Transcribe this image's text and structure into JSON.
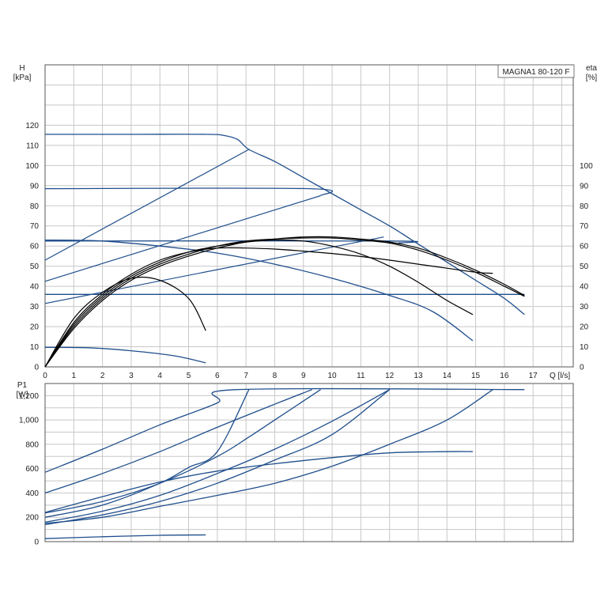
{
  "colors": {
    "blue": "#1f4e8c",
    "black": "#000000",
    "grid": "#c8c8c8",
    "axis": "#555555"
  },
  "chart_data": [
    {
      "type": "line",
      "title": "MAGNA1 80-120 F",
      "ylabel": "H",
      "yunit": "[kPa]",
      "y2label": "eta",
      "y2unit": "[%]",
      "xlabel": "Q [l/s]",
      "xlim": [
        0,
        18.4
      ],
      "ylim": [
        0,
        150
      ],
      "y2lim": [
        0,
        150
      ],
      "xticks": [
        "0",
        "1",
        "2",
        "3",
        "4",
        "5",
        "6",
        "7",
        "8",
        "9",
        "10",
        "11",
        "12",
        "13",
        "14",
        "15",
        "16",
        "17"
      ],
      "yticks": [
        "0",
        "10",
        "20",
        "30",
        "40",
        "50",
        "60",
        "70",
        "80",
        "90",
        "100",
        "110",
        "120"
      ],
      "y2ticks": [
        "0",
        "10",
        "20",
        "30",
        "40",
        "50",
        "60",
        "70",
        "80",
        "90",
        "100"
      ],
      "grid": true,
      "head_series": [
        {
          "values": [
            [
              0,
              115.5
            ],
            [
              3,
              115.5
            ],
            [
              5.6,
              115.5
            ],
            [
              6.2,
              115
            ],
            [
              6.7,
              113
            ],
            [
              7.1,
              108
            ],
            [
              8,
              102
            ],
            [
              9,
              94
            ],
            [
              10,
              86
            ],
            [
              11,
              78
            ],
            [
              12,
              70
            ],
            [
              13,
              61
            ],
            [
              14,
              52
            ],
            [
              15,
              43
            ],
            [
              16,
              34
            ],
            [
              16.7,
              26
            ]
          ]
        },
        {
          "values": [
            [
              0,
              88.5
            ],
            [
              9.2,
              88.5
            ],
            [
              9.6,
              85
            ]
          ]
        },
        {
          "values": [
            [
              0,
              62.5
            ],
            [
              12,
              62.5
            ],
            [
              12.3,
              61.5
            ]
          ]
        },
        {
          "values": [
            [
              0,
              36
            ],
            [
              16.7,
              36
            ]
          ]
        },
        {
          "values": [
            [
              0,
              63
            ],
            [
              2,
              62.5
            ],
            [
              4,
              60
            ],
            [
              6,
              56.5
            ],
            [
              8,
              51
            ],
            [
              10,
              44
            ],
            [
              12,
              35.5
            ],
            [
              13.5,
              27.5
            ],
            [
              14.9,
              13
            ]
          ]
        },
        {
          "values": [
            [
              0,
              9.7
            ],
            [
              1.5,
              9.5
            ],
            [
              3,
              8
            ],
            [
              4.5,
              5.5
            ],
            [
              5.6,
              2
            ]
          ]
        }
      ],
      "system_curves": [
        {
          "values": [
            [
              0,
              53
            ],
            [
              7.1,
              108
            ]
          ]
        },
        {
          "values": [
            [
              0,
              42.5
            ],
            [
              9.6,
              85
            ]
          ]
        },
        {
          "values": [
            [
              0,
              31.5
            ],
            [
              11.8,
              64.5
            ]
          ]
        }
      ],
      "efficiency_series": [
        {
          "values": [
            [
              0,
              0
            ],
            [
              1,
              24
            ],
            [
              2,
              37
            ],
            [
              3,
              44
            ],
            [
              4,
              43
            ],
            [
              5,
              34
            ],
            [
              5.6,
              18
            ]
          ]
        },
        {
          "values": [
            [
              0,
              0
            ],
            [
              1,
              22
            ],
            [
              2,
              36
            ],
            [
              3,
              46
            ],
            [
              4,
              53
            ],
            [
              5,
              57
            ],
            [
              6,
              59
            ],
            [
              7,
              59
            ],
            [
              8,
              58.5
            ],
            [
              9,
              57.5
            ],
            [
              10,
              56.3
            ],
            [
              11,
              54.8
            ],
            [
              12,
              53
            ],
            [
              13,
              51
            ],
            [
              14,
              49
            ],
            [
              15,
              47
            ],
            [
              15.6,
              46.5
            ]
          ]
        },
        {
          "values": [
            [
              0,
              0
            ],
            [
              1,
              21
            ],
            [
              2,
              35
            ],
            [
              3,
              45
            ],
            [
              4,
              52
            ],
            [
              5,
              57
            ],
            [
              6,
              60
            ],
            [
              7,
              62
            ],
            [
              8,
              63
            ],
            [
              9,
              62.5
            ],
            [
              10,
              60
            ],
            [
              11,
              56
            ],
            [
              12,
              50
            ],
            [
              13,
              42
            ],
            [
              14,
              33
            ],
            [
              14.9,
              26
            ]
          ]
        },
        {
          "values": [
            [
              0,
              0
            ],
            [
              1,
              20
            ],
            [
              2,
              34
            ],
            [
              3,
              44
            ],
            [
              4,
              51
            ],
            [
              5,
              56
            ],
            [
              6,
              60
            ],
            [
              7,
              62.5
            ],
            [
              8,
              63.5
            ],
            [
              9,
              64
            ],
            [
              10,
              64
            ],
            [
              11,
              63
            ],
            [
              12,
              61.5
            ],
            [
              13,
              58
            ],
            [
              14,
              53
            ],
            [
              15,
              47
            ],
            [
              16,
              40
            ],
            [
              16.7,
              35
            ]
          ]
        },
        {
          "values": [
            [
              0,
              0
            ],
            [
              1,
              19
            ],
            [
              2,
              33
            ],
            [
              3,
              43
            ],
            [
              4,
              50
            ],
            [
              5,
              55
            ],
            [
              6,
              59
            ],
            [
              7,
              62
            ],
            [
              8,
              63.5
            ],
            [
              9,
              64.5
            ],
            [
              10,
              64.5
            ],
            [
              11,
              63.5
            ],
            [
              12,
              62
            ],
            [
              13,
              59
            ],
            [
              14,
              54
            ],
            [
              15,
              48
            ],
            [
              16,
              41
            ],
            [
              16.7,
              35.5
            ]
          ]
        }
      ]
    },
    {
      "type": "line",
      "ylabel": "P1",
      "yunit": "[W]",
      "xlim": [
        0,
        18.4
      ],
      "ylim": [
        0,
        1300
      ],
      "yticks": [
        "0",
        "200",
        "400",
        "600",
        "800",
        "1,000",
        "1,200"
      ],
      "grid": true,
      "series": [
        {
          "values": [
            [
              0,
              570
            ],
            [
              2,
              760
            ],
            [
              4,
              960
            ],
            [
              6,
              1140
            ],
            [
              6.7,
              1250
            ],
            [
              16.7,
              1250
            ]
          ]
        },
        {
          "values": [
            [
              0,
              400
            ],
            [
              2,
              560
            ],
            [
              4,
              740
            ],
            [
              6,
              940
            ],
            [
              8,
              1130
            ],
            [
              9.3,
              1250
            ]
          ]
        },
        {
          "values": [
            [
              0,
              235
            ],
            [
              2,
              330
            ],
            [
              4,
              480
            ],
            [
              6,
              700
            ],
            [
              7.1,
              860
            ],
            [
              8,
              1000
            ],
            [
              9.6,
              1250
            ]
          ]
        },
        {
          "values": [
            [
              0,
              200
            ],
            [
              2,
              300
            ],
            [
              4,
              480
            ],
            [
              5,
              610
            ],
            [
              6,
              740
            ],
            [
              7.1,
              1250
            ]
          ]
        },
        {
          "values": [
            [
              0,
              160
            ],
            [
              2,
              250
            ],
            [
              4,
              380
            ],
            [
              6,
              560
            ],
            [
              8,
              760
            ],
            [
              10,
              990
            ],
            [
              12,
              1250
            ]
          ]
        },
        {
          "values": [
            [
              0,
              140
            ],
            [
              2,
              220
            ],
            [
              4,
              330
            ],
            [
              6,
              480
            ],
            [
              8,
              670
            ],
            [
              10,
              880
            ],
            [
              12,
              1250
            ]
          ]
        },
        {
          "values": [
            [
              0,
              150
            ],
            [
              2,
              200
            ],
            [
              4,
              290
            ],
            [
              6,
              380
            ],
            [
              8,
              480
            ],
            [
              10,
              620
            ],
            [
              12,
              800
            ],
            [
              14,
              1000
            ],
            [
              15.6,
              1250
            ]
          ]
        },
        {
          "values": [
            [
              0,
              240
            ],
            [
              2,
              370
            ],
            [
              4,
              490
            ],
            [
              6,
              580
            ],
            [
              8,
              640
            ],
            [
              10,
              690
            ],
            [
              12,
              730
            ],
            [
              14,
              740
            ],
            [
              14.9,
              740
            ]
          ]
        },
        {
          "values": [
            [
              0,
              25
            ],
            [
              2,
              40
            ],
            [
              4,
              52
            ],
            [
              5.6,
              55
            ]
          ]
        }
      ]
    }
  ]
}
